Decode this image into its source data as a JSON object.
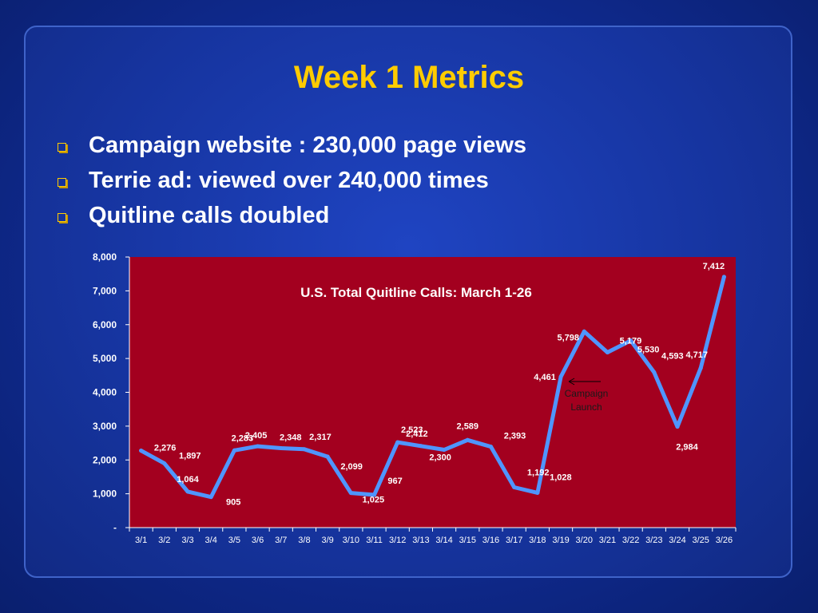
{
  "slide": {
    "title": "Week 1 Metrics",
    "bullets": [
      "Campaign website : 230,000 page views",
      "Terrie ad: viewed over 240,000 times",
      "Quitline calls doubled"
    ]
  },
  "chart_data": {
    "type": "line",
    "title": "U.S. Total Quitline Calls: March 1-26",
    "xlabel": "",
    "ylabel": "",
    "categories": [
      "3/1",
      "3/2",
      "3/3",
      "3/4",
      "3/5",
      "3/6",
      "3/7",
      "3/8",
      "3/9",
      "3/10",
      "3/11",
      "3/12",
      "3/13",
      "3/14",
      "3/15",
      "3/16",
      "3/17",
      "3/18",
      "3/19",
      "3/20",
      "3/21",
      "3/22",
      "3/23",
      "3/24",
      "3/25",
      "3/26"
    ],
    "series": [
      {
        "values": [
          2276,
          1897,
          1064,
          905,
          2283,
          2405,
          2348,
          2317,
          2099,
          1025,
          967,
          2523,
          2412,
          2300,
          2589,
          2393,
          1192,
          1028,
          4461,
          5798,
          5179,
          5530,
          4593,
          2984,
          4717,
          7412
        ],
        "labels": [
          "2,276",
          "1,897",
          "1,064",
          "905",
          "2,283",
          "2,405",
          "2,348",
          "2,317",
          "2,099",
          "1,025",
          "967",
          "2,523",
          "2,412",
          "2,300",
          "2,589",
          "2,393",
          "1,192",
          "1,028",
          "4,461",
          "5,798",
          "5,179",
          "5,530",
          "4,593",
          "2,984",
          "4,717",
          "7,412"
        ]
      }
    ],
    "ylim": [
      0,
      8000
    ],
    "yticks": [
      0,
      1000,
      2000,
      3000,
      4000,
      5000,
      6000,
      7000,
      8000
    ],
    "ytick_labels": [
      "-",
      "1,000",
      "2,000",
      "3,000",
      "4,000",
      "5,000",
      "6,000",
      "7,000",
      "8,000"
    ],
    "grid": false,
    "annotation": {
      "text_line1": "Campaign",
      "text_line2": "Launch",
      "points_to": "3/19"
    },
    "colors": {
      "plot_bg": "#a3001f",
      "line": "#4f95ff",
      "labels": "#ffffff"
    }
  }
}
